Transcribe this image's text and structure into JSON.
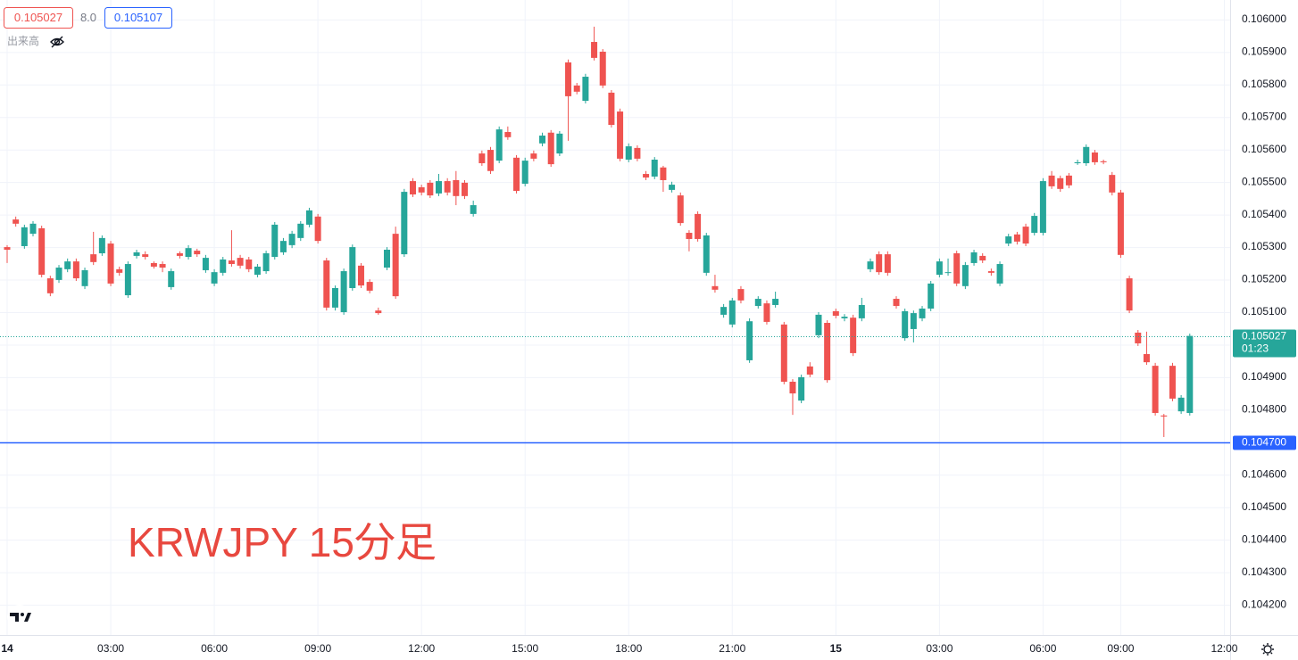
{
  "chart_data": {
    "type": "candlestick",
    "annotation": "KRWJPY 15分足",
    "quote": {
      "bid": 0.105027,
      "spread": "8.0",
      "ask": 0.105107,
      "volume_label": "出来高"
    },
    "up_color": "#26a69a",
    "down_color": "#ef5350",
    "grid": true,
    "ylim": [
      0.104107,
      0.10606
    ],
    "yticks": [
      {
        "value": 0.1042,
        "label": "0.104200"
      },
      {
        "value": 0.1043,
        "label": "0.104300"
      },
      {
        "value": 0.1044,
        "label": "0.104400"
      },
      {
        "value": 0.1045,
        "label": "0.104500"
      },
      {
        "value": 0.1046,
        "label": "0.104600"
      },
      {
        "value": 0.1047,
        "label": "0.104700"
      },
      {
        "value": 0.1048,
        "label": "0.104800"
      },
      {
        "value": 0.1049,
        "label": "0.104900"
      },
      {
        "value": 0.105,
        "label": "0.105000"
      },
      {
        "value": 0.1051,
        "label": "0.105100"
      },
      {
        "value": 0.1052,
        "label": "0.105200"
      },
      {
        "value": 0.1053,
        "label": "0.105300"
      },
      {
        "value": 0.1054,
        "label": "0.105400"
      },
      {
        "value": 0.1055,
        "label": "0.105500"
      },
      {
        "value": 0.1056,
        "label": "0.105600"
      },
      {
        "value": 0.1057,
        "label": "0.105700"
      },
      {
        "value": 0.1058,
        "label": "0.105800"
      },
      {
        "value": 0.1059,
        "label": "0.105900"
      },
      {
        "value": 0.106,
        "label": "0.106000"
      }
    ],
    "current_price": {
      "value": 0.105027,
      "countdown": "01:23",
      "color": "#26a69a"
    },
    "price_line": {
      "value": 0.1047,
      "label": "0.104700",
      "color": "#2962ff"
    },
    "categories": [
      "14",
      null,
      null,
      null,
      null,
      null,
      null,
      null,
      null,
      null,
      null,
      null,
      "03:00",
      null,
      null,
      null,
      null,
      null,
      null,
      null,
      null,
      null,
      null,
      null,
      "06:00",
      null,
      null,
      null,
      null,
      null,
      null,
      null,
      null,
      null,
      null,
      null,
      "09:00",
      null,
      null,
      null,
      null,
      null,
      null,
      null,
      null,
      null,
      null,
      null,
      "12:00",
      null,
      null,
      null,
      null,
      null,
      null,
      null,
      null,
      null,
      null,
      null,
      "15:00",
      null,
      null,
      null,
      null,
      null,
      null,
      null,
      null,
      null,
      null,
      null,
      "18:00",
      null,
      null,
      null,
      null,
      null,
      null,
      null,
      null,
      null,
      null,
      null,
      "21:00",
      null,
      null,
      null,
      null,
      null,
      null,
      null,
      null,
      null,
      null,
      null,
      "15",
      null,
      null,
      null,
      null,
      null,
      null,
      null,
      null,
      null,
      null,
      null,
      "03:00",
      null,
      null,
      null,
      null,
      null,
      null,
      null,
      null,
      null,
      null,
      null,
      "06:00",
      null,
      null,
      null,
      null,
      null,
      null,
      null,
      null,
      "09:00",
      null,
      null,
      null,
      null,
      null,
      null,
      null,
      null,
      null,
      null,
      null,
      "12:00"
    ],
    "open": [
      0.1053,
      0.105385,
      0.105303,
      0.105341,
      0.105358,
      0.105204,
      0.105199,
      0.105232,
      0.105256,
      0.10518,
      0.105278,
      0.105281,
      0.105311,
      0.105232,
      0.105152,
      0.105273,
      0.105278,
      0.105251,
      0.105248,
      0.105177,
      0.105281,
      0.10527,
      0.105289,
      0.105229,
      0.105188,
      0.105221,
      0.105259,
      0.105267,
      0.105262,
      0.105215,
      0.105226,
      0.10527,
      0.105284,
      0.105306,
      0.105328,
      0.105369,
      0.105394,
      0.105259,
      0.105114,
      0.1051,
      0.105174,
      0.105243,
      0.105193,
      0.105105,
      0.105237,
      0.105341,
      0.105278,
      0.105503,
      0.105484,
      0.105498,
      0.105465,
      0.105503,
      0.105506,
      0.105498,
      0.105402,
      0.105588,
      0.105599,
      0.105566,
      0.105654,
      0.105575,
      0.105495,
      0.105588,
      0.105619,
      0.105652,
      0.105588,
      0.105868,
      0.105797,
      0.10575,
      0.105931,
      0.105901,
      0.105775,
      0.105717,
      0.105569,
      0.105605,
      0.105525,
      0.105517,
      0.105545,
      0.105476,
      0.105459,
      0.105344,
      0.105402,
      0.105221,
      0.10518,
      0.105092,
      0.105062,
      0.105171,
      0.104952,
      0.105119,
      0.105127,
      0.105122,
      0.105062,
      0.104886,
      0.104828,
      0.104933,
      0.105029,
      0.105067,
      0.105103,
      0.105081,
      0.105083,
      0.105081,
      0.105232,
      0.105278,
      0.105278,
      0.105141,
      0.10502,
      0.105048,
      0.105081,
      0.105111,
      0.105215,
      0.105221,
      0.105281,
      0.10518,
      0.105251,
      0.105273,
      0.105226,
      0.105188,
      0.105311,
      0.105339,
      0.105363,
      0.105344,
      0.105344,
      0.10552,
      0.105512,
      0.10552,
      0.105558,
      0.105558,
      0.105591,
      0.105564,
      0.105522,
      0.105468,
      0.105204,
      0.105037,
      0.104971,
      0.104935,
      0.104782,
      0.104935,
      0.104795,
      0.10479,
      null,
      null,
      null,
      null
    ],
    "high": [
      0.105306,
      0.105394,
      0.105369,
      0.10538,
      0.105366,
      0.105212,
      0.105245,
      0.105265,
      0.105265,
      0.105237,
      0.105347,
      0.105336,
      0.105319,
      0.10524,
      0.105256,
      0.105292,
      0.105287,
      0.105256,
      0.105256,
      0.105234,
      0.105287,
      0.105306,
      0.105295,
      0.105276,
      0.105232,
      0.10527,
      0.105352,
      0.105276,
      0.10527,
      0.105248,
      0.105289,
      0.105377,
      0.105328,
      0.10535,
      0.10538,
      0.105421,
      0.105402,
      0.105267,
      0.105182,
      0.105234,
      0.105308,
      0.105251,
      0.105201,
      0.105114,
      0.1053,
      0.105363,
      0.105479,
      0.105512,
      0.105492,
      0.105506,
      0.105525,
      0.105512,
      0.105534,
      0.105506,
      0.105443,
      0.105597,
      0.105608,
      0.105671,
      0.105671,
      0.105583,
      0.105575,
      0.105597,
      0.105652,
      0.10566,
      0.105657,
      0.105877,
      0.105805,
      0.105833,
      0.105978,
      0.105909,
      0.105783,
      0.105726,
      0.105619,
      0.105613,
      0.105534,
      0.105577,
      0.10555,
      0.105501,
      0.105468,
      0.105352,
      0.10541,
      0.105344,
      0.105215,
      0.105125,
      0.105144,
      0.10518,
      0.105081,
      0.105149,
      0.105136,
      0.105163,
      0.10507,
      0.104894,
      0.104908,
      0.104946,
      0.1051,
      0.105075,
      0.105111,
      0.105094,
      0.105092,
      0.105144,
      0.105265,
      0.105287,
      0.105287,
      0.105149,
      0.105111,
      0.105105,
      0.105119,
      0.105196,
      0.105265,
      0.105265,
      0.105289,
      0.105254,
      0.105292,
      0.105281,
      0.105234,
      0.105256,
      0.105341,
      0.105347,
      0.105372,
      0.105405,
      0.105512,
      0.105534,
      0.10552,
      0.105528,
      0.105569,
      0.105616,
      0.105599,
      0.105569,
      0.105531,
      0.105476,
      0.105212,
      0.105045,
      0.10504,
      0.104944,
      0.104787,
      0.104944,
      0.104845,
      0.105034,
      null,
      null,
      null,
      null
    ],
    "low": [
      0.105251,
      0.105363,
      0.105295,
      0.105333,
      0.105207,
      0.105149,
      0.10519,
      0.105223,
      0.105196,
      0.105171,
      0.105245,
      0.105273,
      0.10518,
      0.105212,
      0.105144,
      0.105265,
      0.105262,
      0.105234,
      0.105223,
      0.105169,
      0.105265,
      0.105262,
      0.10527,
      0.105221,
      0.10518,
      0.105212,
      0.10524,
      0.105234,
      0.105223,
      0.105207,
      0.105218,
      0.105262,
      0.105276,
      0.105297,
      0.105319,
      0.105361,
      0.105311,
      0.105105,
      0.105105,
      0.105092,
      0.105166,
      0.105174,
      0.105158,
      0.105092,
      0.105229,
      0.105141,
      0.10527,
      0.105454,
      0.105459,
      0.105451,
      0.105457,
      0.105459,
      0.105429,
      0.105448,
      0.105394,
      0.10555,
      0.105525,
      0.105558,
      0.10563,
      0.105465,
      0.105487,
      0.105564,
      0.10561,
      0.105547,
      0.10558,
      0.105627,
      0.10577,
      0.105742,
      0.105874,
      0.105789,
      0.105668,
      0.105564,
      0.105561,
      0.105564,
      0.105506,
      0.105509,
      0.10547,
      0.105468,
      0.105366,
      0.105287,
      0.105317,
      0.105212,
      0.10516,
      0.105083,
      0.105053,
      0.105127,
      0.104944,
      0.105111,
      0.105062,
      0.105114,
      0.104878,
      0.104784,
      0.10482,
      0.1049,
      0.10502,
      0.104883,
      0.105081,
      0.105072,
      0.104965,
      0.105072,
      0.105223,
      0.105215,
      0.105212,
      0.105111,
      0.105012,
      0.105007,
      0.105072,
      0.105103,
      0.105207,
      0.105212,
      0.10518,
      0.105171,
      0.105243,
      0.105251,
      0.105212,
      0.10518,
      0.105303,
      0.105308,
      0.105303,
      0.105336,
      0.105336,
      0.105479,
      0.10547,
      0.105481,
      0.105553,
      0.10555,
      0.105553,
      0.105555,
      0.105459,
      0.105267,
      0.105097,
      0.104996,
      0.104938,
      0.104782,
      0.104716,
      0.104826,
      0.104787,
      0.104782,
      null,
      null,
      null,
      null
    ],
    "close": [
      0.105292,
      0.105372,
      0.105361,
      0.105372,
      0.105215,
      0.105158,
      0.105237,
      0.105256,
      0.105204,
      0.105229,
      0.105254,
      0.105328,
      0.105188,
      0.105221,
      0.105248,
      0.105284,
      0.10527,
      0.10524,
      0.105237,
      0.105226,
      0.105273,
      0.105297,
      0.105278,
      0.105267,
      0.105223,
      0.105262,
      0.105248,
      0.105243,
      0.105232,
      0.10524,
      0.105281,
      0.105369,
      0.105319,
      0.105341,
      0.105372,
      0.105413,
      0.105319,
      0.105114,
      0.105174,
      0.105226,
      0.1053,
      0.105182,
      0.105166,
      0.105097,
      0.105292,
      0.105149,
      0.10547,
      0.105462,
      0.105468,
      0.105459,
      0.105503,
      0.105468,
      0.105457,
      0.105457,
      0.105429,
      0.105558,
      0.105534,
      0.105662,
      0.105638,
      0.105473,
      0.105566,
      0.105572,
      0.105643,
      0.105555,
      0.105649,
      0.105764,
      0.105778,
      0.105824,
      0.105882,
      0.105797,
      0.105676,
      0.105572,
      0.10561,
      0.105572,
      0.105514,
      0.105569,
      0.105506,
      0.105492,
      0.105374,
      0.105325,
      0.105325,
      0.105336,
      0.105169,
      0.105116,
      0.105136,
      0.105136,
      0.105072,
      0.105141,
      0.10507,
      0.105141,
      0.104886,
      0.10485,
      0.1049,
      0.104908,
      0.105092,
      0.104891,
      0.105089,
      0.105086,
      0.104974,
      0.105122,
      0.105256,
      0.105223,
      0.105221,
      0.105119,
      0.105103,
      0.105097,
      0.105111,
      0.105188,
      0.105256,
      0.105223,
      0.105188,
      0.105245,
      0.105284,
      0.105259,
      0.105221,
      0.105248,
      0.105333,
      0.105317,
      0.105311,
      0.105396,
      0.105503,
      0.105487,
      0.105479,
      0.10549,
      0.105561,
      0.105608,
      0.105561,
      0.105561,
      0.105468,
      0.105276,
      0.105105,
      0.105004,
      0.104946,
      0.10479,
      0.104779,
      0.104834,
      0.104837,
      0.105027,
      null,
      null,
      null,
      null
    ]
  }
}
